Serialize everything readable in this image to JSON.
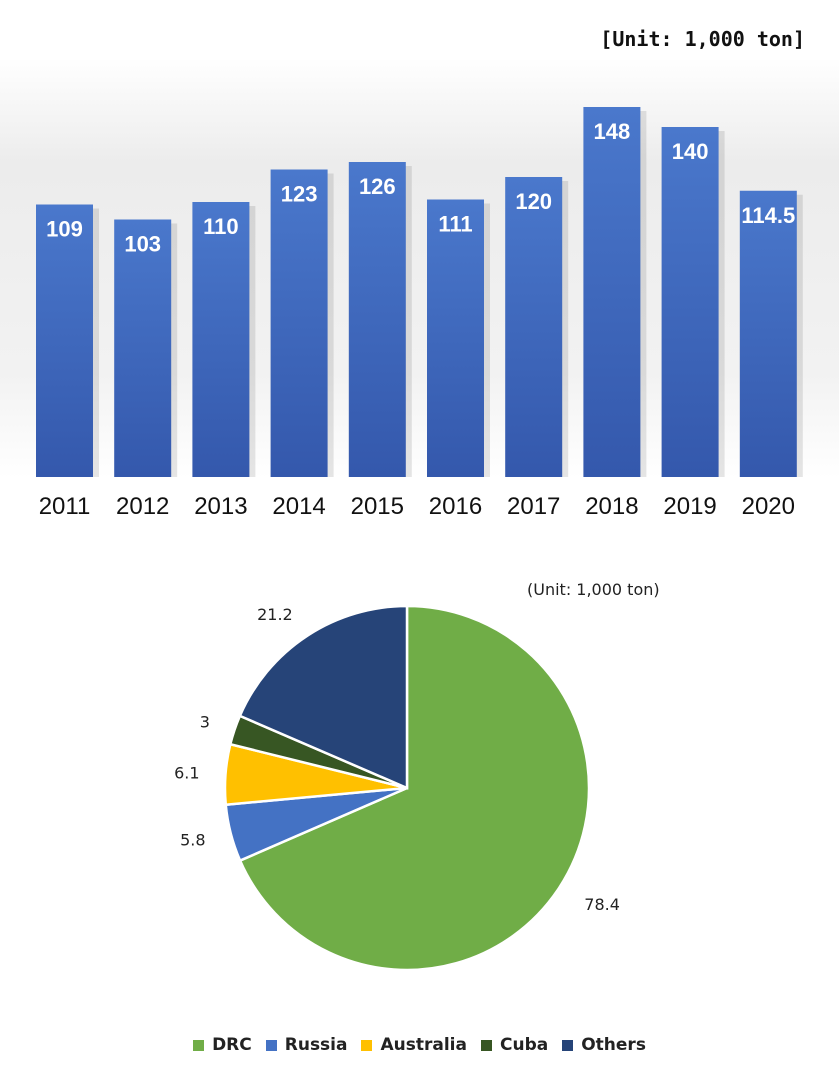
{
  "chart_data": [
    {
      "type": "bar",
      "title": "",
      "unit_label": "[Unit: 1,000 ton]",
      "categories": [
        "2011",
        "2012",
        "2013",
        "2014",
        "2015",
        "2016",
        "2017",
        "2018",
        "2019",
        "2020"
      ],
      "values": [
        109,
        103,
        110,
        123,
        126,
        111,
        120,
        148,
        140,
        114.5
      ],
      "value_labels": [
        "109",
        "103",
        "110",
        "123",
        "126",
        "111",
        "120",
        "148",
        "140",
        "114.5"
      ],
      "ylim": [
        0,
        148
      ],
      "xlabel": "",
      "ylabel": "",
      "grid": false,
      "color": "#4472C4"
    },
    {
      "type": "pie",
      "title": "",
      "unit_label": "(Unit: 1,000 ton)",
      "slices": [
        {
          "name": "DRC",
          "value": 78.4,
          "label": "78.4",
          "color": "#70AD47"
        },
        {
          "name": "Russia",
          "value": 5.8,
          "label": "5.8",
          "color": "#4472C4"
        },
        {
          "name": "Australia",
          "value": 6.1,
          "label": "6.1",
          "color": "#FFC000"
        },
        {
          "name": "Cuba",
          "value": 3,
          "label": "3",
          "color": "#375623"
        },
        {
          "name": "Others",
          "value": 21.2,
          "label": "21.2",
          "color": "#264478"
        }
      ],
      "legend_position": "bottom"
    }
  ]
}
